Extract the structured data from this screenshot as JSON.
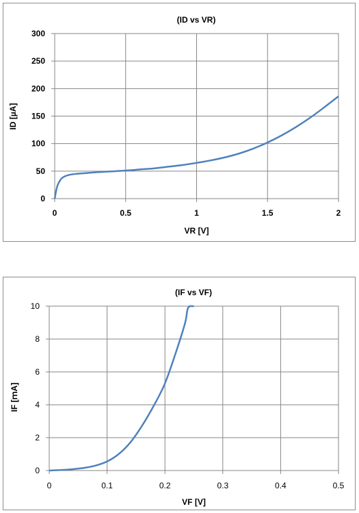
{
  "chart_data": [
    {
      "type": "line",
      "title": "(ID vs VR)",
      "xlabel": "VR [V]",
      "ylabel": "ID [µA]",
      "xlim": [
        0,
        2
      ],
      "ylim": [
        0,
        300
      ],
      "x_ticks": [
        "0",
        "0.5",
        "1",
        "1.5",
        "2"
      ],
      "y_ticks": [
        "0",
        "50",
        "100",
        "150",
        "200",
        "250",
        "300"
      ],
      "grid": true,
      "color": "#4f81bd",
      "series": [
        {
          "x": [
            0,
            0.01,
            0.02,
            0.04,
            0.06,
            0.1,
            0.15,
            0.2,
            0.3,
            0.4,
            0.5,
            0.6,
            0.7,
            0.8,
            0.9,
            1.0,
            1.1,
            1.2,
            1.3,
            1.4,
            1.5,
            1.6,
            1.7,
            1.8,
            1.9,
            2.0
          ],
          "y": [
            0,
            14,
            24,
            34,
            39,
            43,
            45,
            46,
            48,
            49.5,
            51,
            53,
            55,
            58,
            61,
            65,
            69.5,
            75,
            82,
            91,
            102,
            115,
            130,
            147,
            166,
            186
          ]
        }
      ]
    },
    {
      "type": "line",
      "title": "(IF vs VF)",
      "xlabel": "VF [V]",
      "ylabel": "IF [ｍA]",
      "xlim": [
        0,
        0.5
      ],
      "ylim": [
        0,
        10
      ],
      "x_ticks": [
        "0",
        "0.1",
        "0.2",
        "0.3",
        "0.4",
        "0.5"
      ],
      "y_ticks": [
        "0",
        "2",
        "4",
        "6",
        "8",
        "10"
      ],
      "grid": true,
      "color": "#4f81bd",
      "series": [
        {
          "x": [
            0,
            0.02,
            0.04,
            0.06,
            0.08,
            0.1,
            0.12,
            0.14,
            0.16,
            0.18,
            0.2,
            0.22,
            0.235,
            0.24,
            0.25
          ],
          "y": [
            0,
            0.03,
            0.08,
            0.16,
            0.3,
            0.55,
            1.0,
            1.7,
            2.7,
            3.9,
            5.3,
            7.3,
            9.0,
            9.9,
            10
          ]
        }
      ]
    }
  ]
}
